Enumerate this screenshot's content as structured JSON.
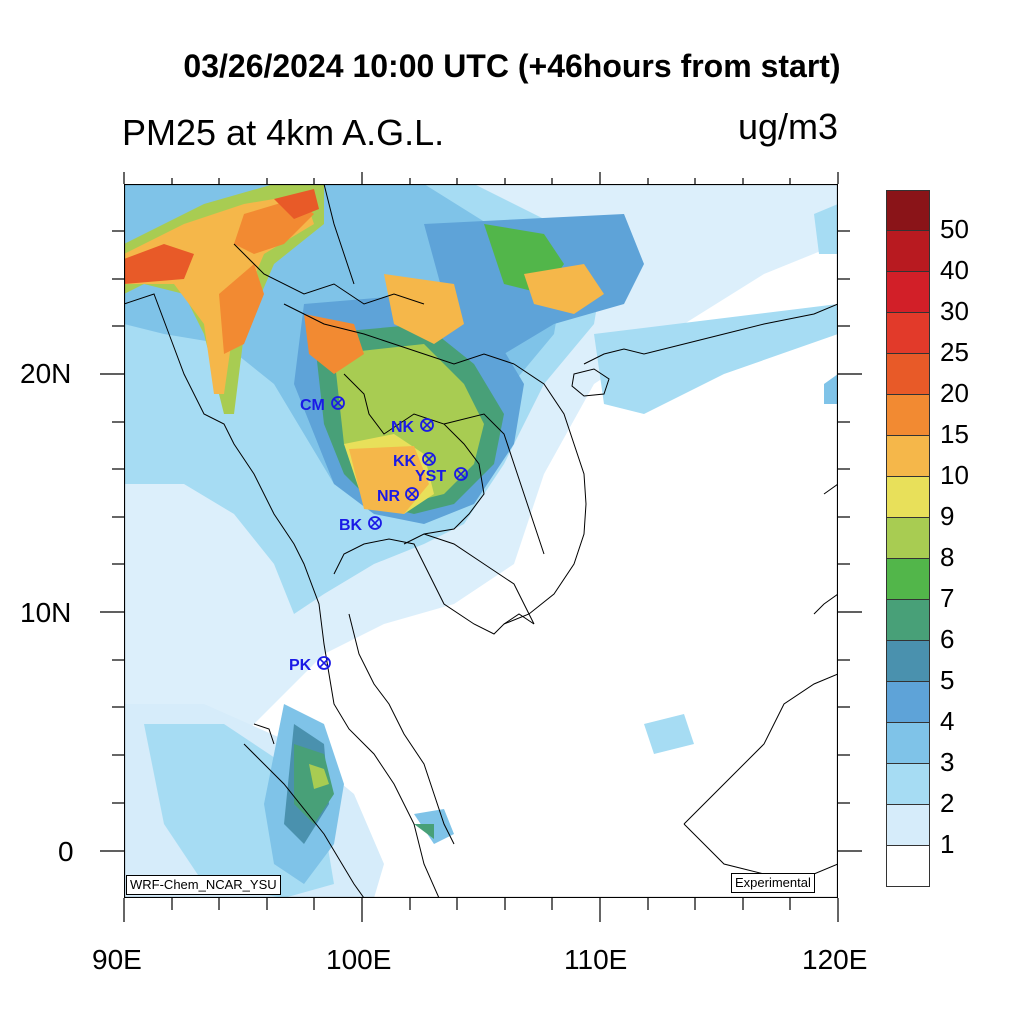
{
  "header": {
    "title": "03/26/2024 10:00 UTC (+46hours from start)",
    "variable": "PM25 at 4km A.G.L.",
    "units": "ug/m3"
  },
  "axes": {
    "x_labels": [
      "90E",
      "100E",
      "110E",
      "120E"
    ],
    "y_labels": [
      "20N",
      "10N",
      "0"
    ]
  },
  "credits": {
    "model": "WRF-Chem_NCAR_YSU",
    "status": "Experimental"
  },
  "stations": [
    {
      "code": "CM"
    },
    {
      "code": "NK"
    },
    {
      "code": "KK"
    },
    {
      "code": "YST"
    },
    {
      "code": "NR"
    },
    {
      "code": "BK"
    },
    {
      "code": "PK"
    }
  ],
  "legend": {
    "levels": [
      "1",
      "2",
      "3",
      "4",
      "5",
      "6",
      "7",
      "8",
      "9",
      "10",
      "15",
      "20",
      "25",
      "30",
      "40",
      "50"
    ],
    "colors": [
      "#ffffff",
      "#d6ecfa",
      "#a6dcf3",
      "#7fc3e8",
      "#5ea3d8",
      "#4a91ae",
      "#48a078",
      "#52b64a",
      "#a8cc52",
      "#e8e05a",
      "#f5b74a",
      "#f28a32",
      "#e85a28",
      "#e23a2a",
      "#d21f28",
      "#b81a20",
      "#8a1418"
    ],
    "colors_order": "bottom-to-top"
  },
  "colors": {
    "station_marker": "#1a1ae6",
    "coastline": "#000000"
  }
}
